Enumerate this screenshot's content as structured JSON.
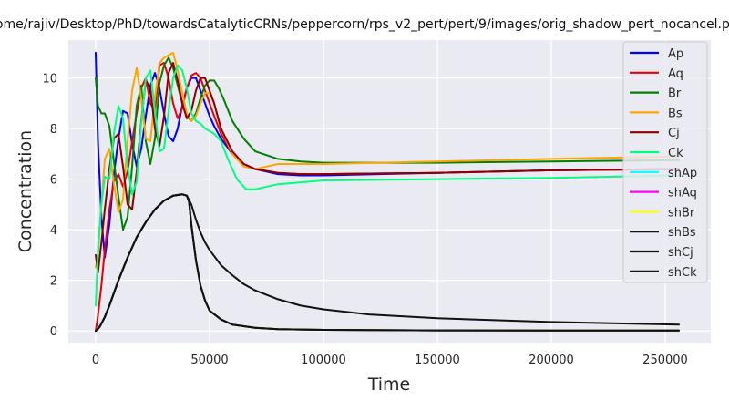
{
  "chart_data": {
    "type": "line",
    "title": "/home/rajiv/Desktop/PhD/towardsCatalyticCRNs/peppercorn/rps_v2_pert/pert/9/images/orig_shadow_pert_nocancel.png",
    "xlabel": "Time",
    "ylabel": "Concentration",
    "xlim": [
      -12000,
      270000
    ],
    "ylim": [
      -0.5,
      11.5
    ],
    "xticks": [
      0,
      50000,
      100000,
      150000,
      200000,
      250000
    ],
    "yticks": [
      0,
      2,
      4,
      6,
      8,
      10
    ],
    "grid": true,
    "legend_position": "top-right",
    "series": [
      {
        "name": "Ap",
        "color": "#0000ff",
        "x": [
          0,
          1000,
          2500,
          4000,
          6000,
          8000,
          10000,
          12000,
          14000,
          16000,
          18000,
          20000,
          22000,
          24000,
          26000,
          28000,
          30000,
          32000,
          34000,
          36000,
          38000,
          40000,
          42000,
          44000,
          46000,
          48000,
          50000,
          52000,
          55000,
          60000,
          65000,
          70000,
          80000,
          90000,
          100000,
          150000,
          200000,
          256000
        ],
        "y": [
          11.0,
          7.5,
          4.5,
          2.9,
          4.2,
          6.2,
          7.6,
          8.7,
          8.6,
          7.4,
          6.5,
          7.2,
          8.5,
          9.7,
          10.2,
          9.6,
          8.6,
          7.7,
          7.5,
          8.0,
          8.9,
          9.6,
          10.0,
          10.0,
          9.5,
          9.0,
          8.5,
          8.1,
          7.6,
          7.0,
          6.6,
          6.4,
          6.2,
          6.15,
          6.15,
          6.25,
          6.35,
          6.4
        ]
      },
      {
        "name": "Aq",
        "color": "#e8000b",
        "x": [
          0,
          1000,
          2500,
          4000,
          6000,
          8000,
          10000,
          12000,
          14000,
          16000,
          18000,
          20000,
          22000,
          24000,
          26000,
          28000,
          30000,
          32000,
          34000,
          36000,
          38000,
          40000,
          42000,
          44000,
          46000,
          48000,
          50000,
          52000,
          55000,
          60000,
          65000,
          70000,
          80000,
          90000,
          100000,
          150000,
          200000,
          256000
        ],
        "y": [
          0.0,
          0.6,
          1.8,
          3.2,
          4.8,
          5.9,
          6.2,
          5.7,
          6.3,
          7.5,
          8.6,
          9.6,
          10.0,
          9.0,
          8.7,
          10.5,
          10.6,
          10.0,
          9.0,
          8.4,
          8.8,
          9.6,
          10.1,
          10.2,
          10.0,
          9.5,
          9.0,
          8.5,
          7.8,
          7.0,
          6.6,
          6.4,
          6.25,
          6.2,
          6.2,
          6.25,
          6.35,
          6.4
        ]
      },
      {
        "name": "Br",
        "color": "#008000",
        "x": [
          0,
          1000,
          2500,
          4000,
          6000,
          8000,
          10000,
          12000,
          14000,
          16000,
          18000,
          20000,
          22000,
          24000,
          26000,
          28000,
          30000,
          32000,
          34000,
          36000,
          38000,
          40000,
          42000,
          44000,
          46000,
          48000,
          50000,
          52000,
          54000,
          56000,
          60000,
          65000,
          70000,
          80000,
          90000,
          100000,
          150000,
          200000,
          256000
        ],
        "y": [
          10.0,
          8.9,
          8.6,
          8.6,
          8.1,
          6.7,
          5.3,
          4.0,
          4.5,
          6.5,
          8.9,
          9.7,
          7.5,
          6.6,
          7.6,
          9.8,
          10.5,
          10.8,
          10.4,
          9.7,
          9.0,
          8.5,
          8.3,
          8.6,
          9.2,
          9.7,
          9.9,
          9.9,
          9.6,
          9.2,
          8.3,
          7.6,
          7.1,
          6.8,
          6.7,
          6.65,
          6.65,
          6.7,
          6.75
        ]
      },
      {
        "name": "Bs",
        "color": "#ffa500",
        "x": [
          0,
          1000,
          2500,
          4000,
          6000,
          8000,
          10000,
          12000,
          14000,
          16000,
          18000,
          20000,
          22000,
          24000,
          26000,
          28000,
          30000,
          32000,
          34000,
          36000,
          38000,
          40000,
          42000,
          44000,
          46000,
          48000,
          50000,
          52000,
          55000,
          60000,
          65000,
          70000,
          75000,
          80000,
          100000,
          150000,
          200000,
          256000
        ],
        "y": [
          2.5,
          3.0,
          5.0,
          6.8,
          7.2,
          5.8,
          4.7,
          5.2,
          7.5,
          9.5,
          10.4,
          9.2,
          7.6,
          7.5,
          9.2,
          10.6,
          10.8,
          10.9,
          11.0,
          10.3,
          9.4,
          8.6,
          8.3,
          8.5,
          9.0,
          9.4,
          9.4,
          9.0,
          8.0,
          7.0,
          6.5,
          6.4,
          6.5,
          6.6,
          6.6,
          6.7,
          6.8,
          6.9
        ]
      },
      {
        "name": "Cj",
        "color": "#8b0000",
        "x": [
          0,
          1000,
          2500,
          4000,
          6000,
          8000,
          10000,
          12000,
          14000,
          16000,
          18000,
          20000,
          22000,
          24000,
          26000,
          28000,
          30000,
          32000,
          34000,
          36000,
          38000,
          40000,
          42000,
          44000,
          46000,
          48000,
          50000,
          52000,
          55000,
          60000,
          65000,
          70000,
          80000,
          90000,
          100000,
          150000,
          200000,
          256000
        ],
        "y": [
          3.0,
          2.3,
          3.5,
          4.8,
          6.4,
          7.6,
          7.8,
          6.5,
          5.0,
          4.8,
          6.3,
          8.3,
          9.9,
          9.6,
          8.0,
          7.3,
          8.5,
          10.2,
          10.6,
          9.9,
          9.0,
          8.4,
          8.7,
          9.5,
          10.0,
          10.0,
          9.5,
          9.0,
          8.0,
          7.1,
          6.6,
          6.4,
          6.25,
          6.2,
          6.2,
          6.25,
          6.35,
          6.4
        ]
      },
      {
        "name": "Ck",
        "color": "#00ff7f",
        "x": [
          0,
          1000,
          2500,
          4000,
          6000,
          8000,
          10000,
          12000,
          14000,
          16000,
          18000,
          20000,
          22000,
          24000,
          26000,
          28000,
          30000,
          32000,
          34000,
          36000,
          38000,
          40000,
          42000,
          44000,
          46000,
          48000,
          50000,
          52000,
          55000,
          58000,
          62000,
          66000,
          70000,
          80000,
          100000,
          150000,
          200000,
          256000
        ],
        "y": [
          1.0,
          3.2,
          5.0,
          6.1,
          6.0,
          7.8,
          8.9,
          8.4,
          6.5,
          5.4,
          5.9,
          8.2,
          10.0,
          10.3,
          8.7,
          7.1,
          7.2,
          8.7,
          10.0,
          10.5,
          10.3,
          9.6,
          8.6,
          8.3,
          8.2,
          8.0,
          7.9,
          7.8,
          7.5,
          6.8,
          6.0,
          5.6,
          5.6,
          5.8,
          5.95,
          6.0,
          6.05,
          6.15
        ]
      },
      {
        "name": "shAp",
        "color": "#00ffff",
        "x": [
          0,
          1000,
          2000,
          4000,
          6000,
          8000,
          10000,
          14000,
          18000,
          22000,
          26000,
          30000,
          34000,
          38000,
          40000,
          41000,
          42000,
          44000,
          46000,
          48000,
          50000,
          55000,
          60000,
          70000,
          80000,
          100000,
          150000,
          200000,
          256000
        ],
        "y": [
          0.0,
          0.08,
          0.2,
          0.55,
          1.0,
          1.5,
          2.0,
          2.9,
          3.7,
          4.3,
          4.8,
          5.15,
          5.35,
          5.4,
          5.35,
          5.1,
          4.2,
          2.8,
          1.8,
          1.2,
          0.8,
          0.45,
          0.25,
          0.12,
          0.07,
          0.04,
          0.02,
          0.01,
          0.01
        ]
      },
      {
        "name": "shAq",
        "color": "#ff00ff",
        "x": [
          0,
          1000,
          2000,
          4000,
          6000,
          8000,
          10000,
          14000,
          18000,
          22000,
          26000,
          30000,
          34000,
          38000,
          40000,
          41000,
          42000,
          44000,
          46000,
          48000,
          50000,
          55000,
          60000,
          70000,
          80000,
          100000,
          150000,
          200000,
          256000
        ],
        "y": [
          0.0,
          0.08,
          0.2,
          0.55,
          1.0,
          1.5,
          2.0,
          2.9,
          3.7,
          4.3,
          4.8,
          5.15,
          5.35,
          5.4,
          5.35,
          5.1,
          4.2,
          2.8,
          1.8,
          1.2,
          0.8,
          0.45,
          0.25,
          0.12,
          0.07,
          0.04,
          0.02,
          0.01,
          0.01
        ]
      },
      {
        "name": "shBr",
        "color": "#ffff00",
        "x": [
          0,
          1000,
          2000,
          4000,
          6000,
          8000,
          10000,
          14000,
          18000,
          22000,
          26000,
          30000,
          34000,
          38000,
          40000,
          41000,
          42000,
          44000,
          46000,
          48000,
          50000,
          55000,
          60000,
          70000,
          80000,
          100000,
          150000,
          200000,
          256000
        ],
        "y": [
          0.0,
          0.08,
          0.2,
          0.55,
          1.0,
          1.5,
          2.0,
          2.9,
          3.7,
          4.3,
          4.8,
          5.15,
          5.35,
          5.4,
          5.35,
          5.1,
          4.2,
          2.8,
          1.8,
          1.2,
          0.8,
          0.45,
          0.25,
          0.12,
          0.07,
          0.04,
          0.02,
          0.01,
          0.01
        ]
      },
      {
        "name": "shBs",
        "color": "#111111",
        "x": [
          0,
          1000,
          2000,
          4000,
          6000,
          8000,
          10000,
          14000,
          18000,
          22000,
          26000,
          30000,
          34000,
          38000,
          40000,
          41000,
          42000,
          44000,
          46000,
          48000,
          50000,
          55000,
          60000,
          70000,
          80000,
          100000,
          150000,
          200000,
          256000
        ],
        "y": [
          0.0,
          0.08,
          0.2,
          0.55,
          1.0,
          1.5,
          2.0,
          2.9,
          3.7,
          4.3,
          4.8,
          5.15,
          5.35,
          5.4,
          5.35,
          5.1,
          4.2,
          2.8,
          1.8,
          1.2,
          0.8,
          0.45,
          0.25,
          0.12,
          0.07,
          0.04,
          0.02,
          0.01,
          0.01
        ]
      },
      {
        "name": "shCj",
        "color": "#111111",
        "x": [
          0,
          1000,
          2000,
          4000,
          6000,
          8000,
          10000,
          14000,
          18000,
          22000,
          26000,
          30000,
          34000,
          38000,
          40000,
          41000,
          42000,
          44000,
          46000,
          48000,
          50000,
          55000,
          60000,
          70000,
          80000,
          100000,
          150000,
          200000,
          256000
        ],
        "y": [
          0.0,
          0.08,
          0.2,
          0.55,
          1.0,
          1.5,
          2.0,
          2.9,
          3.7,
          4.3,
          4.8,
          5.15,
          5.35,
          5.4,
          5.35,
          5.1,
          4.2,
          2.8,
          1.8,
          1.2,
          0.8,
          0.45,
          0.25,
          0.12,
          0.07,
          0.04,
          0.02,
          0.01,
          0.01
        ]
      },
      {
        "name": "shCk",
        "color": "#111111",
        "x": [
          0,
          1000,
          2000,
          4000,
          6000,
          8000,
          10000,
          14000,
          18000,
          22000,
          26000,
          30000,
          34000,
          38000,
          40000,
          42000,
          44000,
          46000,
          48000,
          50000,
          55000,
          60000,
          65000,
          70000,
          80000,
          90000,
          100000,
          120000,
          150000,
          200000,
          256000
        ],
        "y": [
          0.0,
          0.08,
          0.2,
          0.55,
          1.0,
          1.5,
          2.0,
          2.9,
          3.7,
          4.3,
          4.8,
          5.15,
          5.35,
          5.4,
          5.35,
          5.0,
          4.4,
          3.9,
          3.5,
          3.2,
          2.6,
          2.2,
          1.85,
          1.6,
          1.25,
          1.0,
          0.85,
          0.65,
          0.5,
          0.35,
          0.25
        ]
      }
    ]
  }
}
